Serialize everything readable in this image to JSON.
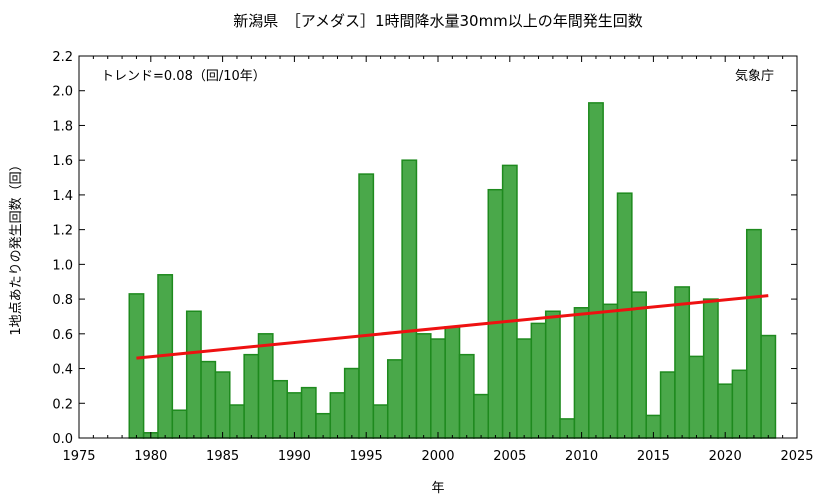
{
  "chart_data": {
    "type": "bar",
    "title": "新潟県　［アメダス］1時間降水量30mm以上の年間発生回数",
    "xlabel": "年",
    "ylabel": "1地点あたりの発生回数（回）",
    "trend_label": "トレンド=0.08（回/10年）",
    "source_label": "気象庁",
    "xlim": [
      1975,
      2025
    ],
    "ylim": [
      0,
      2.2
    ],
    "xticks": [
      1975,
      1980,
      1985,
      1990,
      1995,
      2000,
      2005,
      2010,
      2015,
      2020,
      2025
    ],
    "yticks": [
      0.0,
      0.2,
      0.4,
      0.6,
      0.8,
      1.0,
      1.2,
      1.4,
      1.6,
      1.8,
      2.0,
      2.2
    ],
    "grid": false,
    "bar_color": "#4aa84a",
    "bar_edge_color": "#1e8a1e",
    "trend_color": "#ee1111",
    "years": [
      1979,
      1980,
      1981,
      1982,
      1983,
      1984,
      1985,
      1986,
      1987,
      1988,
      1989,
      1990,
      1991,
      1992,
      1993,
      1994,
      1995,
      1996,
      1997,
      1998,
      1999,
      2000,
      2001,
      2002,
      2003,
      2004,
      2005,
      2006,
      2007,
      2008,
      2009,
      2010,
      2011,
      2012,
      2013,
      2014,
      2015,
      2016,
      2017,
      2018,
      2019,
      2020,
      2021,
      2022,
      2023
    ],
    "values": [
      0.83,
      0.03,
      0.94,
      0.16,
      0.73,
      0.44,
      0.38,
      0.19,
      0.48,
      0.6,
      0.33,
      0.26,
      0.29,
      0.14,
      0.26,
      0.4,
      1.52,
      0.19,
      0.45,
      1.6,
      0.6,
      0.57,
      0.64,
      0.48,
      0.25,
      1.43,
      1.57,
      0.57,
      0.66,
      0.73,
      0.11,
      0.75,
      1.93,
      0.77,
      1.41,
      0.84,
      0.13,
      0.38,
      0.87,
      0.47,
      0.8,
      0.31,
      0.39,
      1.2,
      0.59
    ],
    "trend": {
      "x": [
        1979,
        2023
      ],
      "y": [
        0.46,
        0.82
      ]
    }
  }
}
